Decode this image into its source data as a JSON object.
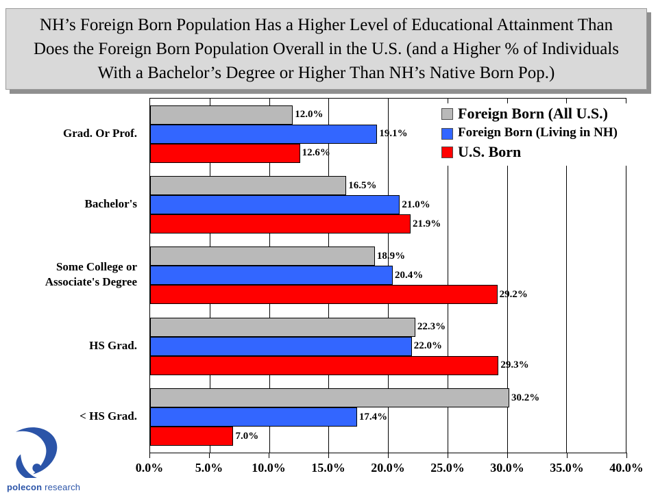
{
  "title": {
    "lines": [
      "NH’s Foreign Born Population Has a Higher Level of Educational Attainment Than",
      "Does the Foreign Born Population Overall in the U.S. (and a Higher % of Individuals",
      "With a Bachelor’s Degree or Higher Than NH’s Native Born Pop.)"
    ]
  },
  "colors": {
    "title_box_bg": "#d9d9d9",
    "title_box_shadow": "#8f8f8f",
    "series_gray": "#b9b9b9",
    "series_blue": "#3366ff",
    "series_red": "#ff0000",
    "logo_blue": "#2b54a8"
  },
  "chart_data": {
    "type": "bar",
    "orientation": "horizontal",
    "categories": [
      "Grad. Or Prof.",
      "Bachelor's",
      "Some College or Associate's Degree",
      "HS Grad.",
      "< HS Grad."
    ],
    "series": [
      {
        "key": "foreign-born-all-us",
        "name": "Foreign Born (All U.S.)",
        "color": "#b9b9b9",
        "values": [
          12.0,
          16.5,
          18.9,
          22.3,
          30.2
        ]
      },
      {
        "key": "foreign-born-nh",
        "name": "Foreign Born (Living in NH)",
        "color": "#3366ff",
        "values": [
          19.1,
          21.0,
          20.4,
          22.0,
          17.4
        ]
      },
      {
        "key": "us-born",
        "name": "U.S. Born",
        "color": "#ff0000",
        "values": [
          12.6,
          21.9,
          29.2,
          29.3,
          7.0
        ]
      }
    ],
    "value_suffix": "%",
    "xlim": [
      0,
      40
    ],
    "x_tick_values": [
      0,
      5,
      10,
      15,
      20,
      25,
      30,
      35,
      40
    ],
    "x_ticks": [
      "0.0%",
      "5.0%",
      "10.0%",
      "15.0%",
      "20.0%",
      "25.0%",
      "30.0%",
      "35.0%",
      "40.0%"
    ],
    "grid": "vertical-major",
    "legend_position": "inside-top-right",
    "data_labels": "outside-end"
  },
  "logo": {
    "name_bold": "polecon",
    "name_rest": "research"
  }
}
